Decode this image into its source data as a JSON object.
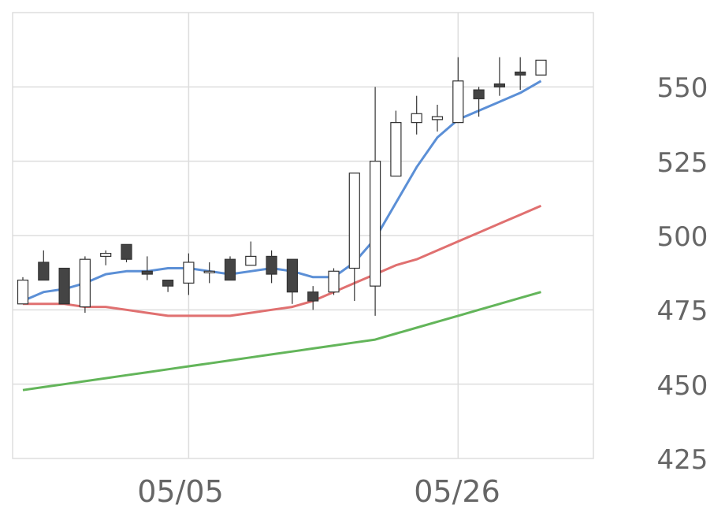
{
  "chart_data": {
    "type": "candlestick",
    "title": "",
    "xlabel": "",
    "ylabel": "",
    "ylim": [
      425,
      575
    ],
    "y_ticks": [
      "550",
      "525",
      "500",
      "475",
      "450",
      "425"
    ],
    "x_ticks": [
      "05/05",
      "05/26"
    ],
    "grid": true,
    "colors": {
      "up_fill": "#ffffff",
      "down_fill": "#444444",
      "wick": "#333333",
      "grid": "#dddddd",
      "ma_short": "#5b8fd6",
      "ma_mid": "#e07070",
      "ma_long": "#63b55a"
    },
    "candles": [
      {
        "open": 477,
        "high": 486,
        "low": 477,
        "close": 485
      },
      {
        "open": 491,
        "high": 495,
        "low": 485,
        "close": 485
      },
      {
        "open": 489,
        "high": 489,
        "low": 477,
        "close": 477
      },
      {
        "open": 476,
        "high": 493,
        "low": 474,
        "close": 492
      },
      {
        "open": 493,
        "high": 495,
        "low": 490,
        "close": 494
      },
      {
        "open": 497,
        "high": 497,
        "low": 491,
        "close": 492
      },
      {
        "open": 488,
        "high": 493,
        "low": 485,
        "close": 487
      },
      {
        "open": 485,
        "high": 485,
        "low": 481,
        "close": 483
      },
      {
        "open": 484,
        "high": 494,
        "low": 480,
        "close": 491
      },
      {
        "open": 488,
        "high": 491,
        "low": 484,
        "close": 488
      },
      {
        "open": 492,
        "high": 493,
        "low": 485,
        "close": 485
      },
      {
        "open": 490,
        "high": 498,
        "low": 490,
        "close": 493
      },
      {
        "open": 493,
        "high": 495,
        "low": 484,
        "close": 487
      },
      {
        "open": 492,
        "high": 492,
        "low": 477,
        "close": 481
      },
      {
        "open": 481,
        "high": 483,
        "low": 475,
        "close": 478
      },
      {
        "open": 481,
        "high": 489,
        "low": 480,
        "close": 488
      },
      {
        "open": 489,
        "high": 521,
        "low": 478,
        "close": 521
      },
      {
        "open": 483,
        "high": 550,
        "low": 473,
        "close": 525
      },
      {
        "open": 520,
        "high": 542,
        "low": 520,
        "close": 538
      },
      {
        "open": 538,
        "high": 547,
        "low": 534,
        "close": 541
      },
      {
        "open": 539,
        "high": 544,
        "low": 535,
        "close": 540
      },
      {
        "open": 538,
        "high": 560,
        "low": 538,
        "close": 552
      },
      {
        "open": 549,
        "high": 550,
        "low": 540,
        "close": 546
      },
      {
        "open": 551,
        "high": 560,
        "low": 547,
        "close": 550
      },
      {
        "open": 555,
        "high": 560,
        "low": 549,
        "close": 554
      },
      {
        "open": 554,
        "high": 559,
        "low": 554,
        "close": 559
      }
    ],
    "series": [
      {
        "values": [
          478,
          481,
          482,
          484,
          487,
          488,
          488,
          489,
          489,
          488,
          487,
          488,
          489,
          488,
          486,
          486,
          491,
          499,
          511,
          523,
          533,
          539,
          542,
          545,
          548,
          552
        ]
      },
      {
        "values": [
          477,
          477,
          477,
          476,
          476,
          475,
          474,
          473,
          473,
          473,
          473,
          474,
          475,
          476,
          478,
          481,
          484,
          487,
          490,
          492,
          495,
          498,
          501,
          504,
          507,
          510
        ]
      },
      {
        "values": [
          448,
          449,
          450,
          451,
          452,
          453,
          454,
          455,
          456,
          457,
          458,
          459,
          460,
          461,
          462,
          463,
          464,
          465,
          467,
          469,
          471,
          473,
          475,
          477,
          479,
          481
        ]
      }
    ]
  }
}
